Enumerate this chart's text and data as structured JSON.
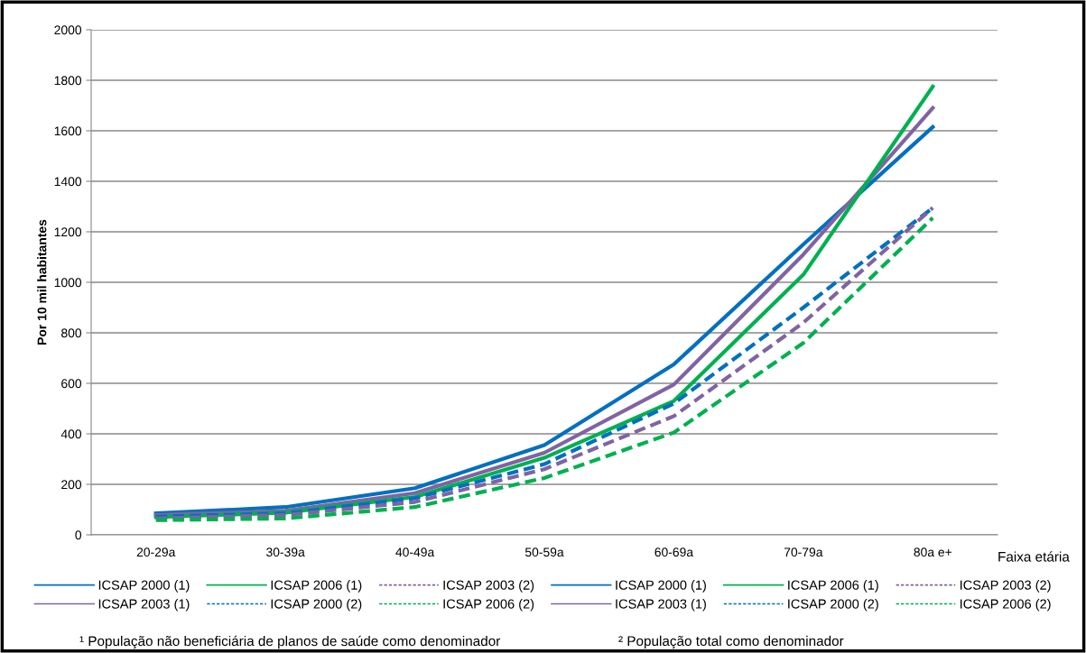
{
  "chart_data": {
    "type": "line",
    "xlabel": "Faixa etária",
    "ylabel": "Por 10 mil habitantes",
    "categories": [
      "20-29a",
      "30-39a",
      "40-49a",
      "50-59a",
      "60-69a",
      "70-79a",
      "80a e+"
    ],
    "series": [
      {
        "name": "ICSAP 2000 (1)",
        "color": "#0070c0",
        "line_style": "solid",
        "values": [
          85,
          110,
          185,
          355,
          675,
          1150,
          1615
        ]
      },
      {
        "name": "ICSAP 2003 (1)",
        "color": "#8064a2",
        "line_style": "solid",
        "values": [
          78,
          95,
          165,
          325,
          595,
          1110,
          1690
        ]
      },
      {
        "name": "ICSAP 2006 (1)",
        "color": "#00b050",
        "line_style": "solid",
        "values": [
          70,
          88,
          150,
          305,
          530,
          1030,
          1775
        ]
      },
      {
        "name": "ICSAP 2000 (2)",
        "color": "#0070c0",
        "line_style": "dashed",
        "values": [
          72,
          85,
          145,
          280,
          520,
          900,
          1295
        ]
      },
      {
        "name": "ICSAP 2003 (2)",
        "color": "#8064a2",
        "line_style": "dashed",
        "values": [
          65,
          78,
          130,
          260,
          470,
          840,
          1295
        ]
      },
      {
        "name": "ICSAP 2006 (2)",
        "color": "#00b050",
        "line_style": "dashed",
        "values": [
          58,
          65,
          110,
          225,
          405,
          760,
          1255
        ]
      }
    ],
    "ylim": [
      0,
      2000
    ],
    "yticks": [
      0,
      200,
      400,
      600,
      800,
      1000,
      1200,
      1400,
      1600,
      1800,
      2000
    ],
    "grid": "y",
    "legend": "bottom",
    "annotations": [
      "¹ População não beneficiária de planos de saúde como denominador",
      "² População total como denominador"
    ]
  }
}
